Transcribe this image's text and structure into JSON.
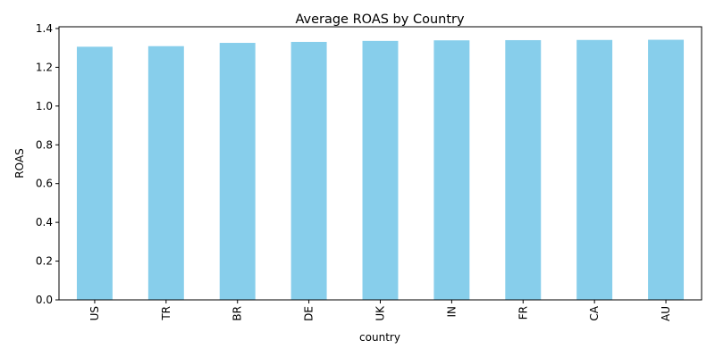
{
  "chart_data": {
    "type": "bar",
    "title": "Average ROAS by Country",
    "xlabel": "country",
    "ylabel": "ROAS",
    "categories": [
      "US",
      "TR",
      "BR",
      "DE",
      "UK",
      "IN",
      "FR",
      "CA",
      "AU"
    ],
    "values": [
      1.306,
      1.309,
      1.326,
      1.331,
      1.336,
      1.339,
      1.34,
      1.341,
      1.342
    ],
    "ylim": [
      0,
      1.409
    ],
    "yticks": [
      0.0,
      0.2,
      0.4,
      0.6,
      0.8,
      1.0,
      1.2,
      1.4
    ],
    "ytick_labels": [
      "0.0",
      "0.2",
      "0.4",
      "0.6",
      "0.8",
      "1.0",
      "1.2",
      "1.4"
    ],
    "bar_color": "#87CEEB",
    "grid": false,
    "legend": "none"
  }
}
